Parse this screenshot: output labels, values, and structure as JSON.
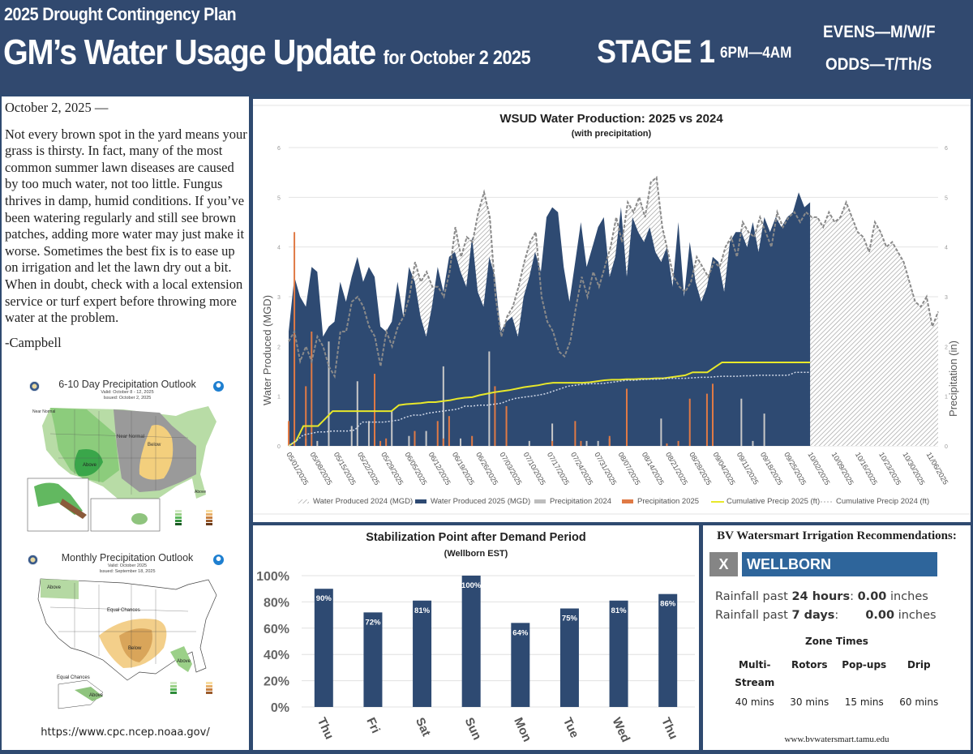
{
  "header": {
    "plan": "2025 Drought Contingency Plan",
    "title": "GM’s Water Usage Update",
    "title_sub": "for October 2 2025",
    "stage": "STAGE 1",
    "hours": "6PM—4AM",
    "evens": "EVENS—M/W/F",
    "odds": "ODDS—T/Th/S"
  },
  "letter": {
    "date": "October 2, 2025 —",
    "body": "Not every brown spot in the yard means your grass is thirsty. In fact, many of the most common summer lawn diseases are caused by too much water, not too little. Fungus thrives in damp, humid conditions. If you’ve been watering regularly and still see brown patches, adding more water may just make it worse. Sometimes the best fix is to ease up on irrigation and let the lawn dry out a bit. When in doubt, check with a local extension service or turf expert before throwing more water at the problem.",
    "signature": "-Campbell"
  },
  "maps": {
    "outlook_6_10": {
      "title": "6-10 Day Precipitation Outlook",
      "valid": "Valid: October 8 - 12, 2025",
      "issued": "Issued: October 2, 2025",
      "labels": [
        "Near Normal",
        "Near Normal",
        "Above",
        "Below",
        "Above"
      ]
    },
    "monthly": {
      "title": "Monthly Precipitation Outlook",
      "valid": "Valid: October 2025",
      "issued": "Issued: September 18, 2025",
      "labels": [
        "Above",
        "Equal Chances",
        "Below",
        "Above",
        "Equal Chances",
        "Above"
      ]
    },
    "source_url": "https://www.cpc.ncep.noaa.gov/"
  },
  "chart_data": [
    {
      "type": "area",
      "title": "WSUD Water Production: 2025 vs 2024",
      "subtitle": "(with precipitation)",
      "ylabel": "Water Produced (MGD)",
      "y2label": "Precipitation (in)",
      "ylim": [
        0,
        6
      ],
      "y2lim": [
        0,
        6
      ],
      "yticks": [
        "0",
        "1",
        "2",
        "3",
        "4",
        "5",
        "6"
      ],
      "y2ticks": [
        "0",
        "1",
        "2",
        "3",
        "4",
        "5",
        "6"
      ],
      "x_ticks": [
        "05/01/2025",
        "05/08/2025",
        "05/15/2025",
        "05/22/2025",
        "05/29/2025",
        "06/05/2025",
        "06/12/2025",
        "06/19/2025",
        "06/26/2025",
        "07/03/2025",
        "07/10/2025",
        "07/17/2025",
        "07/24/2025",
        "07/31/2025",
        "08/07/2025",
        "08/14/2025",
        "08/21/2025",
        "08/28/2025",
        "09/04/2025",
        "09/11/2025",
        "09/18/2025",
        "09/25/2025",
        "10/02/2025",
        "10/09/2025",
        "10/16/2025",
        "10/23/2025",
        "10/30/2025",
        "11/06/2025"
      ],
      "grid": true,
      "legend_position": "bottom",
      "colors": {
        "w2025": "#2e4a72",
        "w2024": "#8a8a8a",
        "p2024": "#c8c8c8",
        "p2025": "#e07a45",
        "cum2025": "#e8e82a",
        "cum2024": "#d0d8e8"
      },
      "series": [
        {
          "name": "Water Produced 2024 (MGD)",
          "key": "w2024",
          "values": [
            2.1,
            2.3,
            1.7,
            2.0,
            1.7,
            2.2,
            2.0,
            1.6,
            1.4,
            2.3,
            2.3,
            2.9,
            3.0,
            2.8,
            2.4,
            2.2,
            1.6,
            2.3,
            2.0,
            2.4,
            2.6,
            3.0,
            3.7,
            3.3,
            3.5,
            3.2,
            3.2,
            3.0,
            3.5,
            4.4,
            3.8,
            4.2,
            4.1,
            4.7,
            5.1,
            4.6,
            3.0,
            2.2,
            2.6,
            2.8,
            3.2,
            3.7,
            4.1,
            4.3,
            3.0,
            2.5,
            2.3,
            1.9,
            1.8,
            2.1,
            2.8,
            3.4,
            3.0,
            3.5,
            3.2,
            3.6,
            4.0,
            4.6,
            4.1,
            4.9,
            4.7,
            5.0,
            4.6,
            5.3,
            5.4,
            4.4,
            3.9,
            3.4,
            3.2,
            3.1,
            3.3,
            3.8,
            3.6,
            3.4,
            3.7,
            3.6,
            4.0,
            4.2,
            3.8,
            4.5,
            4.3,
            4.2,
            4.6,
            4.3,
            4.0,
            4.7,
            4.4,
            4.6,
            4.7,
            4.5,
            4.7,
            4.6,
            4.6,
            4.4,
            4.7,
            4.5,
            4.6,
            4.9,
            4.6,
            4.3,
            4.2,
            3.9,
            4.5,
            4.3,
            4.0,
            4.1,
            3.9,
            3.7,
            3.3,
            2.9,
            2.8,
            3.0,
            2.4,
            2.7
          ]
        },
        {
          "name": "Water Produced 2025 (MGD)",
          "key": "w2025",
          "values": [
            2.3,
            3.4,
            3.0,
            2.8,
            3.6,
            3.5,
            2.2,
            2.4,
            2.5,
            3.3,
            2.9,
            3.4,
            3.8,
            3.3,
            3.6,
            3.4,
            2.4,
            2.3,
            2.5,
            3.3,
            2.6,
            3.6,
            3.3,
            2.6,
            2.2,
            2.8,
            3.6,
            3.1,
            3.8,
            3.9,
            3.5,
            3.2,
            4.2,
            3.1,
            2.8,
            3.8,
            3.4,
            2.3,
            2.5,
            2.6,
            2.2,
            3.0,
            3.4,
            3.9,
            3.5,
            4.6,
            4.8,
            4.7,
            3.6,
            2.9,
            3.7,
            4.5,
            3.6,
            4.0,
            4.4,
            4.6,
            3.4,
            3.8,
            4.8,
            3.4,
            4.6,
            4.3,
            4.1,
            4.4,
            3.9,
            3.7,
            4.0,
            3.2,
            4.5,
            3.0,
            4.1,
            3.3,
            2.9,
            3.2,
            3.8,
            3.7,
            3.1,
            4.1,
            4.3,
            4.3,
            4.0,
            4.5,
            3.9,
            4.6,
            4.3,
            4.6,
            4.4,
            4.6,
            4.7,
            5.1,
            4.8,
            4.9
          ]
        },
        {
          "name": "Precipitation 2024",
          "key": "p2024",
          "type": "bar",
          "values": [
            0,
            0.1,
            0,
            0.15,
            0,
            0.1,
            0,
            2.1,
            0,
            0,
            0,
            0.4,
            1.3,
            0,
            0.5,
            0.2,
            0,
            0,
            0.7,
            0,
            0,
            0.2,
            0,
            0,
            0.3,
            0,
            0,
            1.6,
            0,
            0,
            0.15,
            0,
            0,
            0,
            0,
            1.9,
            0,
            0,
            0,
            0,
            0,
            0,
            0.1,
            0,
            0,
            0,
            0.45,
            0,
            0,
            0,
            0,
            0,
            0.1,
            0,
            0.1,
            0,
            0.15,
            0,
            0,
            0,
            0,
            0,
            0,
            0,
            0,
            0.55,
            0,
            0,
            0,
            0,
            0,
            0,
            0,
            0,
            0,
            0,
            0,
            0,
            0,
            0.95,
            0,
            0.1,
            0,
            0.65,
            0,
            0,
            0,
            0,
            0,
            0,
            0,
            0
          ]
        },
        {
          "name": "Precipitation 2025",
          "key": "p2025",
          "type": "bar",
          "values": [
            0.5,
            4.3,
            0,
            1.2,
            2.3,
            0,
            0,
            0,
            0,
            0,
            0,
            0,
            0,
            0,
            0,
            1.45,
            0.1,
            0.15,
            0,
            0,
            0,
            0,
            0.3,
            0,
            0,
            0,
            0.5,
            0.15,
            0.6,
            0,
            0,
            0,
            0.2,
            0,
            0,
            0,
            1.2,
            0,
            0.8,
            0,
            0,
            0,
            0,
            0,
            0,
            0,
            0.1,
            0,
            0,
            0,
            0.5,
            0.1,
            0,
            0,
            0,
            0,
            0.2,
            0,
            0,
            1.15,
            0,
            0,
            0,
            0,
            0,
            0,
            0.05,
            0,
            0.1,
            0,
            0.95,
            0,
            0,
            1.05,
            1.25,
            0,
            0,
            0,
            0,
            0,
            0,
            0,
            0,
            0,
            0,
            0,
            0,
            0,
            0,
            0,
            0,
            0
          ]
        },
        {
          "name": "Cumulative Precip 2025 (ft)",
          "key": "cum2025",
          "type": "line",
          "values": [
            0,
            0.1,
            0.4,
            0.4,
            0.4,
            0.55,
            0.7,
            0.7,
            0.7,
            0.7,
            0.7,
            0.7,
            0.7,
            0.7,
            0.7,
            0.82,
            0.84,
            0.85,
            0.86,
            0.88,
            0.88,
            0.9,
            0.92,
            0.95,
            0.97,
            0.98,
            1.02,
            1.05,
            1.08,
            1.1,
            1.12,
            1.15,
            1.18,
            1.2,
            1.22,
            1.25,
            1.27,
            1.27,
            1.27,
            1.27,
            1.27,
            1.28,
            1.3,
            1.32,
            1.33,
            1.33,
            1.34,
            1.34,
            1.35,
            1.35,
            1.36,
            1.36,
            1.38,
            1.4,
            1.42,
            1.48,
            1.48,
            1.48,
            1.58,
            1.68,
            1.68,
            1.68,
            1.68,
            1.68,
            1.68,
            1.68,
            1.68,
            1.68,
            1.68,
            1.68,
            1.68,
            1.68
          ]
        },
        {
          "name": "Cumulative Precip 2024 (ft)",
          "key": "cum2024",
          "type": "line",
          "values": [
            0,
            0.1,
            0.22,
            0.25,
            0.28,
            0.28,
            0.3,
            0.3,
            0.3,
            0.32,
            0.48,
            0.48,
            0.48,
            0.48,
            0.5,
            0.52,
            0.58,
            0.62,
            0.62,
            0.66,
            0.68,
            0.7,
            0.72,
            0.74,
            0.8,
            0.8,
            0.82,
            0.82,
            0.84,
            0.86,
            0.92,
            0.96,
            0.98,
            1.0,
            1.02,
            1.05,
            1.1,
            1.15,
            1.2,
            1.22,
            1.24,
            1.25,
            1.25,
            1.26,
            1.28,
            1.3,
            1.32,
            1.32,
            1.33,
            1.34,
            1.34,
            1.35,
            1.36,
            1.36,
            1.36,
            1.37,
            1.38,
            1.38,
            1.39,
            1.4,
            1.4,
            1.4,
            1.41,
            1.41,
            1.42,
            1.42,
            1.42,
            1.42,
            1.42,
            1.48,
            1.48,
            1.48
          ]
        }
      ]
    },
    {
      "type": "bar",
      "title": "Stabilization Point after Demand Period",
      "subtitle": "(Wellborn EST)",
      "categories": [
        "Thu",
        "Fri",
        "Sat",
        "Sun",
        "Mon",
        "Tue",
        "Wed",
        "Thu"
      ],
      "values": [
        90,
        72,
        81,
        100,
        64,
        75,
        81,
        86
      ],
      "data_labels": [
        "90%",
        "72%",
        "81%",
        "100%",
        "64%",
        "75%",
        "81%",
        "86%"
      ],
      "yticks": [
        "0%",
        "20%",
        "40%",
        "60%",
        "80%",
        "100%"
      ],
      "ylim": [
        0,
        100
      ],
      "grid": true,
      "bar_color": "#2e4a72"
    }
  ],
  "bv": {
    "title": "BV Watersmart Irrigation Recommendations:",
    "close": "X",
    "location": "WELLBORN",
    "rain24_prefix": "Rainfall past ",
    "rain24_period": "24 hours",
    "rain24_colon": ": ",
    "rain24_value": "0.00",
    "rain24_unit": " inches",
    "rain7_prefix": "Rainfall past ",
    "rain7_period": "7 days",
    "rain7_colon": ":",
    "rain7_value": "0.00",
    "rain7_unit": " inches",
    "zone_title": "Zone Times",
    "zones": [
      {
        "name": "Multi-\nStream",
        "time": "40 mins"
      },
      {
        "name": "Rotors",
        "time": "30 mins"
      },
      {
        "name": "Pop-ups",
        "time": "15 mins"
      },
      {
        "name": "Drip",
        "time": "60 mins"
      }
    ],
    "url": "www.bvwatersmart.tamu.edu"
  }
}
